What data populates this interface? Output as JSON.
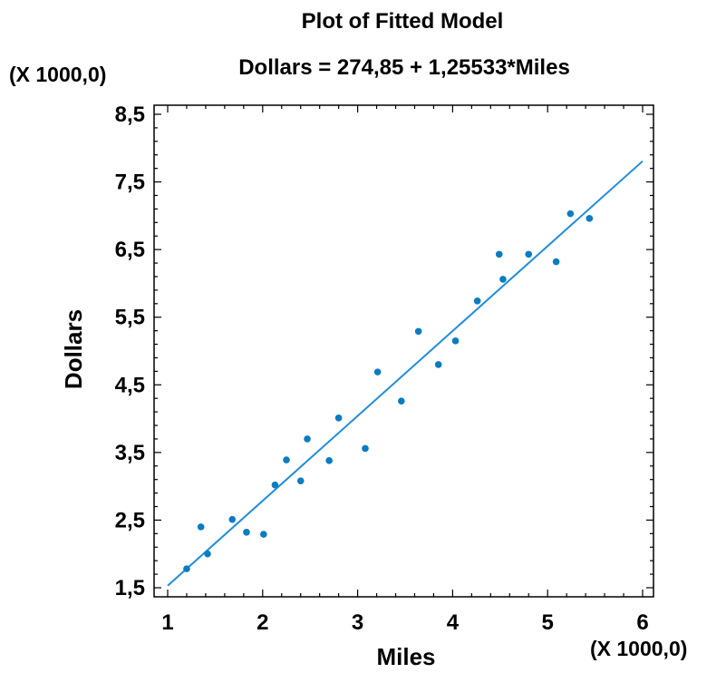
{
  "chart_data": {
    "type": "scatter",
    "title": "Plot of Fitted Model",
    "subtitle": "Dollars = 274,85 + 1,25533*Miles",
    "xlabel": "Miles",
    "ylabel": "Dollars",
    "x_scale_label": "(X 1000,0)",
    "y_scale_label": "(X 1000,0)",
    "xlim": [
      1000,
      6000
    ],
    "ylim": [
      1400,
      8700
    ],
    "x_ticks": [
      {
        "value": 1000,
        "label": "1"
      },
      {
        "value": 2000,
        "label": "2"
      },
      {
        "value": 3000,
        "label": "3"
      },
      {
        "value": 4000,
        "label": "4"
      },
      {
        "value": 5000,
        "label": "5"
      },
      {
        "value": 6000,
        "label": "6"
      }
    ],
    "y_ticks": [
      {
        "value": 1500,
        "label": "1,5"
      },
      {
        "value": 2500,
        "label": "2,5"
      },
      {
        "value": 3500,
        "label": "3,5"
      },
      {
        "value": 4500,
        "label": "4,5"
      },
      {
        "value": 5500,
        "label": "5,5"
      },
      {
        "value": 6500,
        "label": "6,5"
      },
      {
        "value": 7500,
        "label": "7,5"
      },
      {
        "value": 8500,
        "label": "8,5"
      }
    ],
    "grid": false,
    "legend": "none",
    "colors": {
      "points": "#0a7cc2",
      "line": "#1f8de0",
      "axes": "#000000"
    },
    "fit": {
      "intercept": 274.85,
      "slope": 1.25533,
      "x_range": [
        1000,
        6000
      ]
    },
    "points": [
      {
        "x": 1200,
        "y": 1780
      },
      {
        "x": 1350,
        "y": 2400
      },
      {
        "x": 1420,
        "y": 2000
      },
      {
        "x": 1680,
        "y": 2510
      },
      {
        "x": 1830,
        "y": 2320
      },
      {
        "x": 2010,
        "y": 2290
      },
      {
        "x": 2130,
        "y": 3020
      },
      {
        "x": 2250,
        "y": 3390
      },
      {
        "x": 2400,
        "y": 3080
      },
      {
        "x": 2470,
        "y": 3700
      },
      {
        "x": 2700,
        "y": 3380
      },
      {
        "x": 2800,
        "y": 4010
      },
      {
        "x": 3080,
        "y": 3560
      },
      {
        "x": 3210,
        "y": 4690
      },
      {
        "x": 3460,
        "y": 4260
      },
      {
        "x": 3640,
        "y": 5290
      },
      {
        "x": 3850,
        "y": 4800
      },
      {
        "x": 4030,
        "y": 5150
      },
      {
        "x": 4260,
        "y": 5740
      },
      {
        "x": 4490,
        "y": 6430
      },
      {
        "x": 4530,
        "y": 6060
      },
      {
        "x": 4800,
        "y": 6430
      },
      {
        "x": 5090,
        "y": 6320
      },
      {
        "x": 5240,
        "y": 7030
      },
      {
        "x": 5440,
        "y": 6960
      }
    ]
  }
}
